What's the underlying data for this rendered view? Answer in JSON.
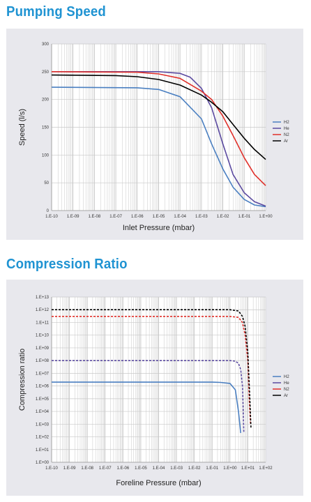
{
  "sections": {
    "pumping_speed_title": "Pumping Speed",
    "compression_ratio_title": "Compression Ratio"
  },
  "colors": {
    "title": "#1f93d2",
    "panel_bg": "#e8e8ed",
    "plot_bg": "#ffffff",
    "grid": "#c8c8c8",
    "H2": "#4a7fc1",
    "He": "#5b4aa0",
    "N2": "#e0302a",
    "Ar": "#000000"
  },
  "chart_data": [
    {
      "type": "line",
      "xscale": "log",
      "xlabel": "Inlet Pressure (mbar)",
      "ylabel": "Speed (l/s)",
      "xlim": [
        1e-10,
        1
      ],
      "ylim": [
        0,
        300
      ],
      "x_ticks": [
        "1.E-10",
        "1.E-09",
        "1.E-08",
        "1.E-07",
        "1.E-06",
        "1.E-05",
        "1.E-04",
        "1.E-03",
        "1.E-02",
        "1.E-01",
        "1.E+00"
      ],
      "y_ticks": [
        "0",
        "50",
        "100",
        "150",
        "200",
        "250",
        "300"
      ],
      "grid": true,
      "legend": "right",
      "series": [
        {
          "name": "H2",
          "color": "#4a7fc1",
          "style": "solid",
          "x": [
            "1.E-10",
            "1.E-06",
            "1.E-05",
            "1.E-04",
            "1.E-03",
            "3.E-03",
            "1.E-02",
            "3.E-02",
            "1.E-01",
            "3.E-01",
            "1.E+00"
          ],
          "y": [
            222,
            221,
            218,
            205,
            165,
            120,
            75,
            42,
            20,
            10,
            7
          ]
        },
        {
          "name": "He",
          "color": "#5b4aa0",
          "style": "solid",
          "x": [
            "1.E-10",
            "1.E-06",
            "1.E-05",
            "1.E-04",
            "3.E-04",
            "1.E-03",
            "3.E-03",
            "1.E-02",
            "3.E-02",
            "1.E-01",
            "3.E-01",
            "1.E+00"
          ],
          "y": [
            250,
            250,
            250,
            247,
            240,
            220,
            185,
            120,
            65,
            32,
            16,
            8
          ]
        },
        {
          "name": "N2",
          "color": "#e0302a",
          "style": "solid",
          "x": [
            "1.E-10",
            "1.E-06",
            "1.E-05",
            "1.E-04",
            "1.E-03",
            "3.E-03",
            "1.E-02",
            "3.E-02",
            "1.E-01",
            "3.E-01",
            "1.E+00"
          ],
          "y": [
            250,
            249,
            246,
            238,
            215,
            200,
            170,
            135,
            95,
            65,
            45
          ]
        },
        {
          "name": "Ar",
          "color": "#000000",
          "style": "solid",
          "x": [
            "1.E-10",
            "1.E-07",
            "1.E-06",
            "1.E-05",
            "1.E-04",
            "1.E-03",
            "3.E-03",
            "1.E-02",
            "3.E-02",
            "1.E-01",
            "3.E-01",
            "1.E+00"
          ],
          "y": [
            244,
            243,
            241,
            236,
            226,
            208,
            195,
            178,
            155,
            130,
            110,
            92
          ]
        }
      ]
    },
    {
      "type": "line",
      "xscale": "log",
      "yscale": "log",
      "xlabel": "Foreline Pressure (mbar)",
      "ylabel": "Compression ratio",
      "xlim": [
        1e-10,
        100
      ],
      "ylim": [
        1,
        10000000000000.0
      ],
      "x_ticks": [
        "1.E-10",
        "1.E-09",
        "1.E-08",
        "1.E-07",
        "1.E-06",
        "1.E-05",
        "1.E-04",
        "1.E-03",
        "1.E-02",
        "1.E-01",
        "1.E+00",
        "1.E+01",
        "1.E+02"
      ],
      "y_ticks": [
        "1.E+00",
        "1.E+01",
        "1.E+02",
        "1.E+03",
        "1.E+04",
        "1.E+05",
        "1.E+06",
        "1.E+07",
        "1.E+08",
        "1.E+09",
        "1.E+10",
        "1.E+11",
        "1.E+12",
        "1.E+13"
      ],
      "grid": true,
      "legend": "right",
      "series": [
        {
          "name": "H2",
          "color": "#4a7fc1",
          "style": "solid",
          "x": [
            "1.E-10",
            "1.E-01",
            "3.E-01",
            "1.E+00",
            "2.E+00",
            "3.E+00",
            "4.E+00"
          ],
          "y": [
            "2.E+06",
            "2.E+06",
            "1.9E+06",
            "1.6E+06",
            "5.E+05",
            "1.E+04",
            "2.E+02"
          ]
        },
        {
          "name": "He",
          "color": "#5b4aa0",
          "style": "dashed",
          "x": [
            "1.E-10",
            "1.E+00",
            "2.E+00",
            "3.E+00",
            "4.E+00",
            "5.E+00",
            "6.E+00"
          ],
          "y": [
            "1.E+08",
            "1.E+08",
            "9.E+07",
            "6.E+07",
            "2.E+07",
            "1.E+06",
            "2.E+02"
          ]
        },
        {
          "name": "N2",
          "color": "#e0302a",
          "style": "dashed",
          "x": [
            "1.E-10",
            "1.E+00",
            "3.E+00",
            "5.E+00",
            "7.E+00",
            "1.E+01",
            "1.2E+01",
            "1.4E+01"
          ],
          "y": [
            "3.E+11",
            "3.E+11",
            "2.5E+11",
            "1.E+11",
            "1.E+10",
            "1.E+08",
            "1.E+05",
            "1.E+03"
          ]
        },
        {
          "name": "Ar",
          "color": "#000000",
          "style": "dashed",
          "x": [
            "1.E-10",
            "1.E+00",
            "3.E+00",
            "5.E+00",
            "7.E+00",
            "1.E+01",
            "1.3E+01",
            "1.5E+01"
          ],
          "y": [
            "1.E+12",
            "1.E+12",
            "8.E+11",
            "3.E+11",
            "5.E+10",
            "5.E+08",
            "1.E+05",
            "5.E+02"
          ]
        }
      ]
    }
  ]
}
